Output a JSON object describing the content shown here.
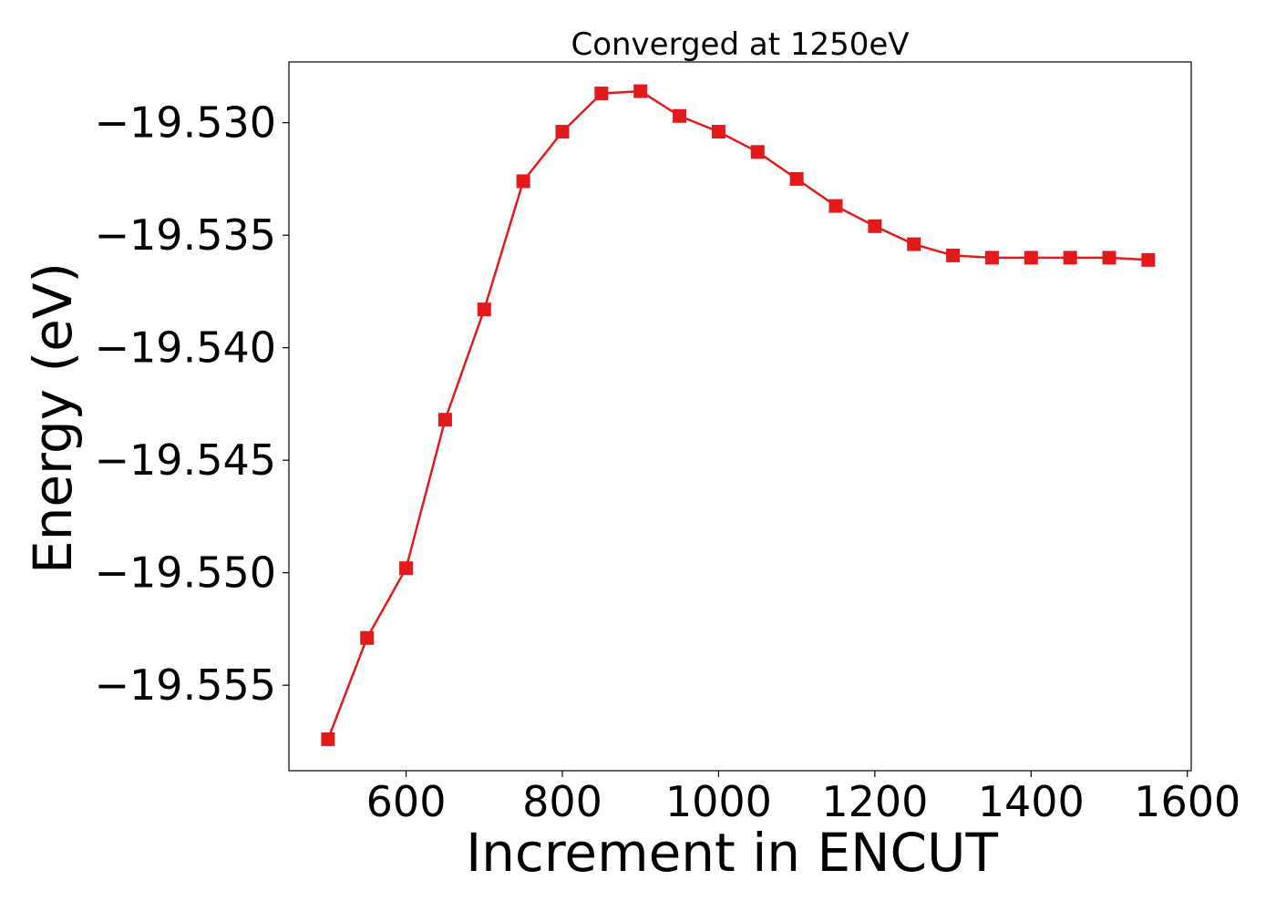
{
  "chart_data": {
    "type": "line",
    "title": "Converged at 1250eV",
    "xlabel": "Increment in ENCUT",
    "ylabel": "Energy (eV)",
    "xlim": [
      450,
      1605
    ],
    "ylim": [
      -19.5588,
      -19.5273
    ],
    "x_ticks": [
      600,
      800,
      1000,
      1200,
      1400,
      1600
    ],
    "y_ticks": [
      -19.555,
      -19.55,
      -19.545,
      -19.54,
      -19.535,
      -19.53
    ],
    "y_tick_labels": [
      "−19.555",
      "−19.550",
      "−19.545",
      "−19.540",
      "−19.535",
      "−19.530"
    ],
    "grid": false,
    "legend": "none",
    "series": [
      {
        "color": "#e31a1c",
        "marker": "square",
        "x": [
          500,
          550,
          600,
          650,
          700,
          750,
          800,
          850,
          900,
          950,
          1000,
          1050,
          1100,
          1150,
          1200,
          1250,
          1300,
          1350,
          1400,
          1450,
          1500,
          1550
        ],
        "y": [
          -19.5574,
          -19.5529,
          -19.5498,
          -19.5432,
          -19.5383,
          -19.5326,
          -19.5304,
          -19.5287,
          -19.5286,
          -19.5297,
          -19.5304,
          -19.5313,
          -19.5325,
          -19.5337,
          -19.5346,
          -19.5354,
          -19.5359,
          -19.536,
          -19.536,
          -19.536,
          -19.536,
          -19.5361
        ]
      }
    ]
  }
}
